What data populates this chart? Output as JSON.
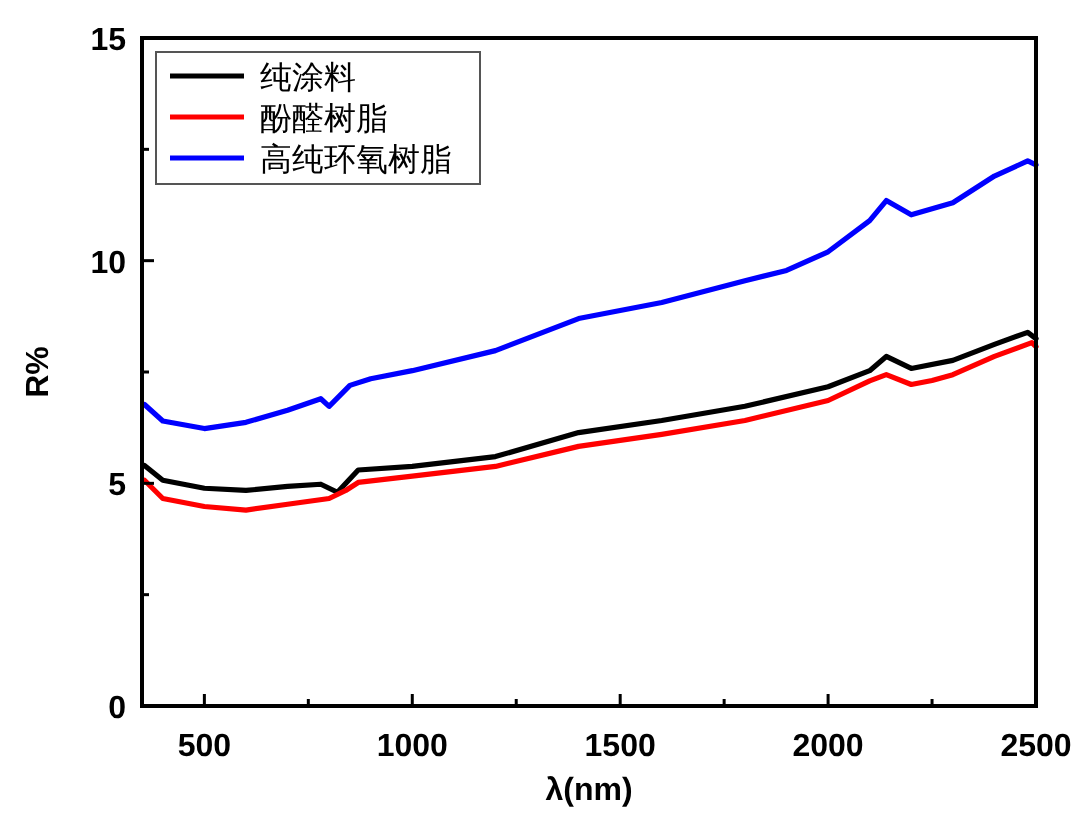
{
  "chart_data": {
    "type": "line",
    "xlabel": "λ(nm)",
    "ylabel": "R%",
    "xlim": [
      350,
      2500
    ],
    "ylim": [
      0,
      15
    ],
    "xticks": [
      500,
      {
        "value": 750,
        "label": null
      },
      1000,
      {
        "value": 1250,
        "label": null
      },
      1500,
      {
        "value": 1750,
        "label": null
      },
      2000,
      {
        "value": 2250,
        "label": null
      },
      2500
    ],
    "yticks": [
      0,
      {
        "value": 2.5,
        "label": null
      },
      5,
      {
        "value": 7.5,
        "label": null
      },
      10,
      {
        "value": 12.5,
        "label": null
      },
      15
    ],
    "legend": "top left",
    "grid": false,
    "marker": "none",
    "line_style": "solid",
    "series": [
      {
        "name": "纯涂料",
        "color": "#000000",
        "x": [
          356,
          400,
          500,
          600,
          700,
          780,
          820,
          870,
          1000,
          1200,
          1400,
          1600,
          1800,
          2000,
          2100,
          2140,
          2200,
          2300,
          2400,
          2480,
          2500
        ],
        "values": [
          5.4,
          5.07,
          4.89,
          4.84,
          4.93,
          4.98,
          4.8,
          5.3,
          5.38,
          5.6,
          6.14,
          6.41,
          6.73,
          7.17,
          7.53,
          7.85,
          7.58,
          7.76,
          8.12,
          8.39,
          8.25
        ]
      },
      {
        "name": "酚醛树脂",
        "color": "#ff0000",
        "x": [
          356,
          400,
          500,
          600,
          700,
          800,
          840,
          870,
          1000,
          1200,
          1400,
          1600,
          1800,
          2000,
          2100,
          2140,
          2200,
          2250,
          2300,
          2400,
          2490,
          2500
        ],
        "values": [
          5.07,
          4.66,
          4.48,
          4.4,
          4.53,
          4.66,
          4.84,
          5.02,
          5.16,
          5.38,
          5.83,
          6.1,
          6.41,
          6.86,
          7.3,
          7.44,
          7.22,
          7.31,
          7.44,
          7.85,
          8.16,
          8.07
        ]
      },
      {
        "name": "高纯环氧树脂",
        "color": "#0000ff",
        "x": [
          356,
          400,
          500,
          600,
          700,
          780,
          800,
          850,
          900,
          1000,
          1200,
          1400,
          1600,
          1800,
          1900,
          2000,
          2100,
          2140,
          2200,
          2300,
          2400,
          2480,
          2500
        ],
        "values": [
          6.77,
          6.4,
          6.23,
          6.37,
          6.64,
          6.9,
          6.73,
          7.2,
          7.35,
          7.53,
          7.98,
          8.7,
          9.06,
          9.55,
          9.78,
          10.2,
          10.9,
          11.35,
          11.03,
          11.3,
          11.9,
          12.24,
          12.15
        ]
      }
    ]
  }
}
